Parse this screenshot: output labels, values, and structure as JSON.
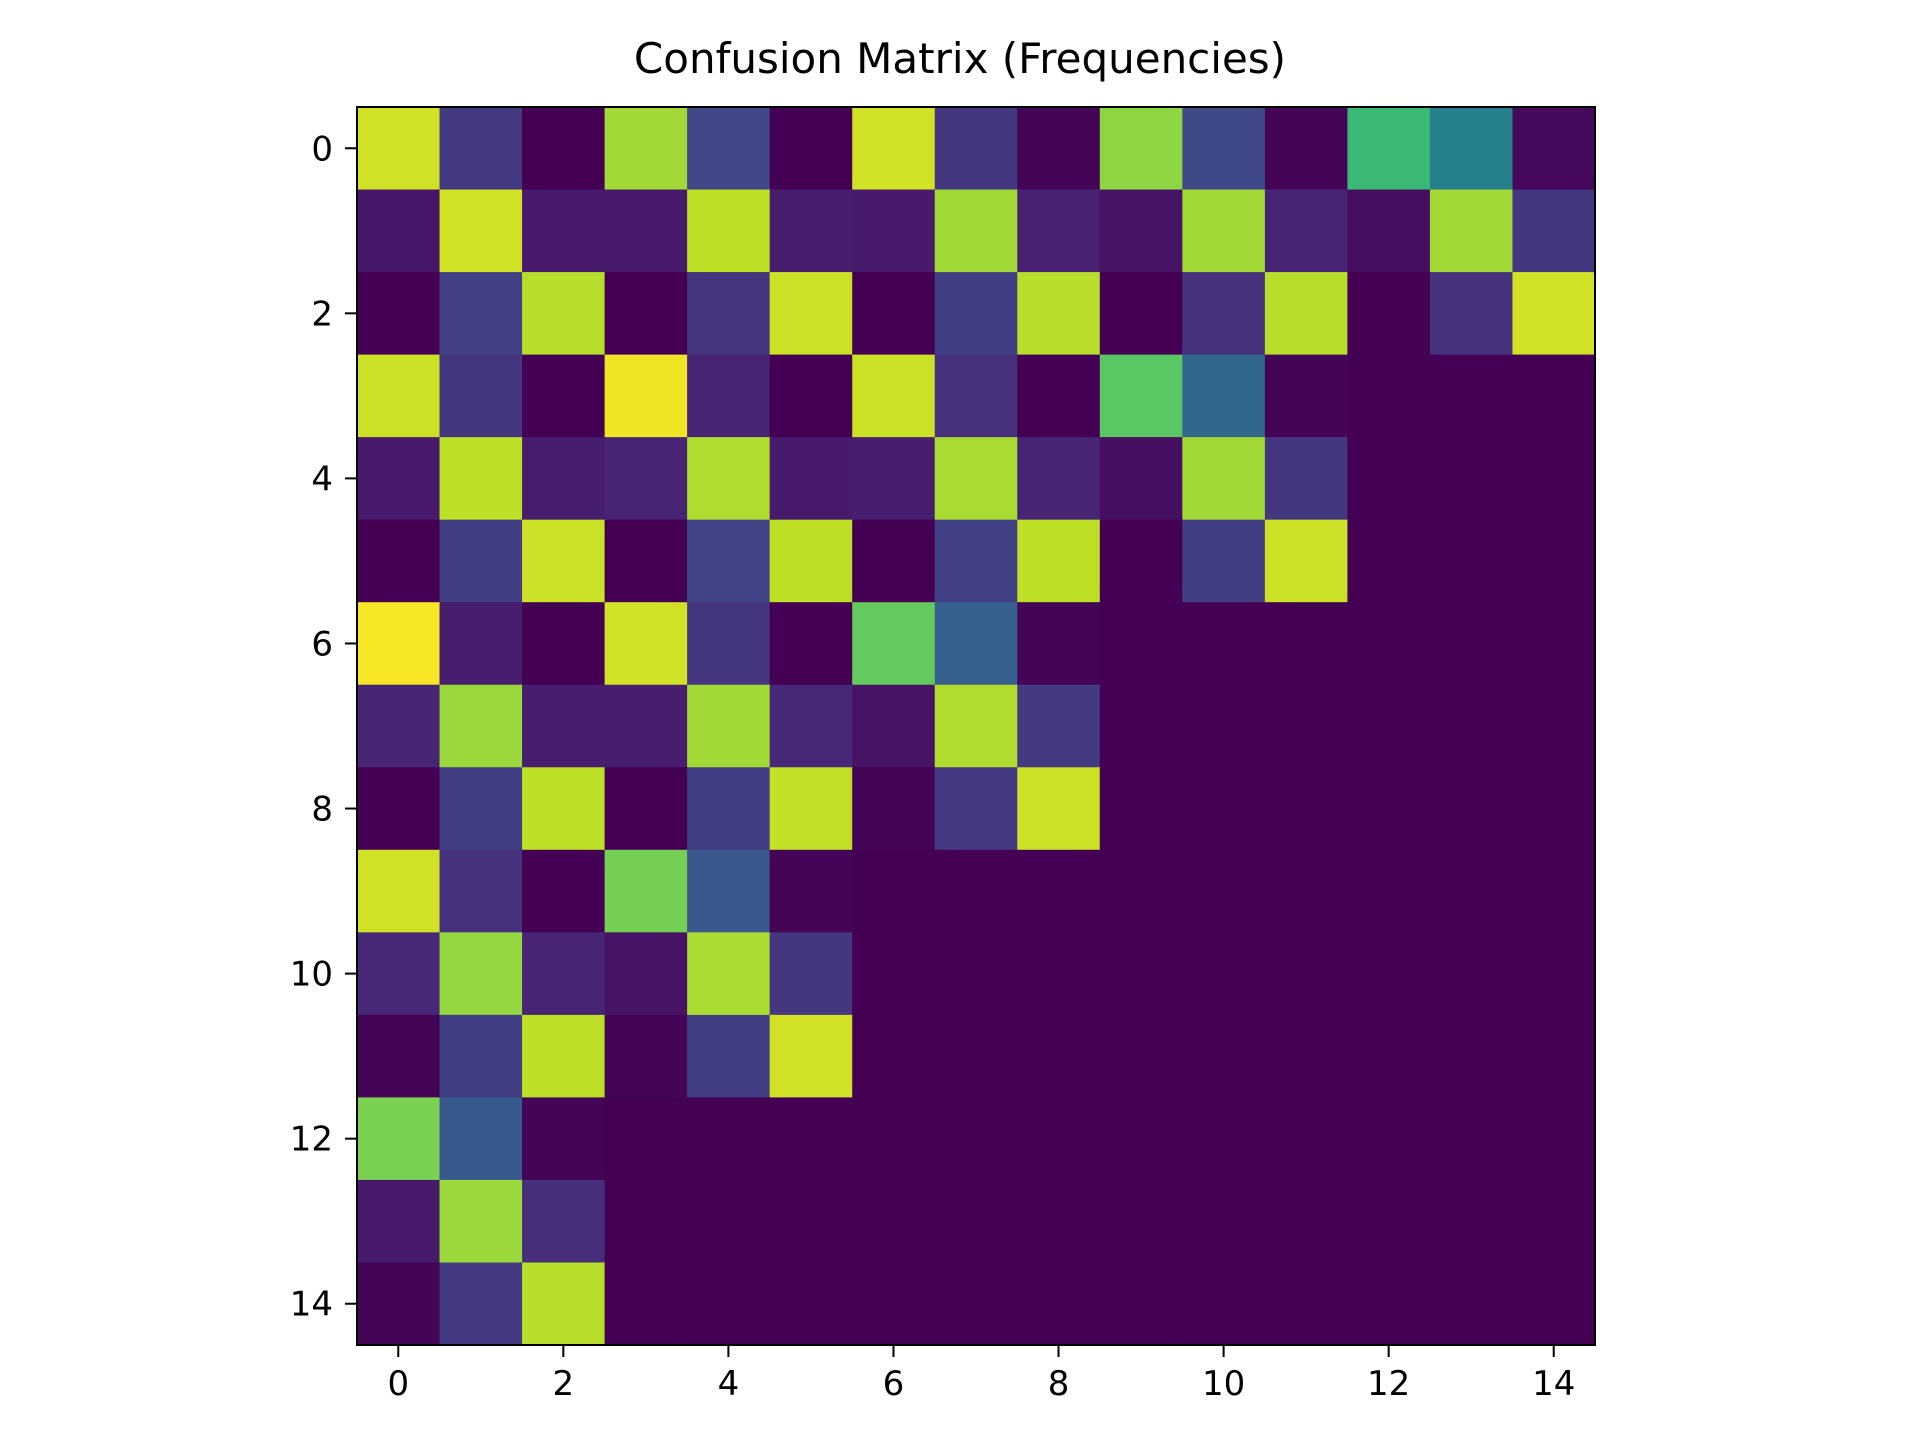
{
  "chart_data": {
    "type": "heatmap",
    "title": "Confusion Matrix (Frequencies)",
    "xlabel": "",
    "ylabel": "",
    "colormap": "viridis",
    "grid": false,
    "legend": "none",
    "xlim": [
      -0.5,
      14.5
    ],
    "ylim": [
      14.5,
      -0.5
    ],
    "x_ticks": [
      "0",
      "2",
      "4",
      "6",
      "8",
      "10",
      "12",
      "14"
    ],
    "y_ticks": [
      "0",
      "2",
      "4",
      "6",
      "8",
      "10",
      "12",
      "14"
    ],
    "x_tick_values": [
      0,
      2,
      4,
      6,
      8,
      10,
      12,
      14
    ],
    "y_tick_values": [
      0,
      2,
      4,
      6,
      8,
      10,
      12,
      14
    ],
    "value_range": [
      0,
      1
    ],
    "matrix": [
      [
        0.93,
        0.17,
        0.0,
        0.86,
        0.21,
        0.0,
        0.93,
        0.16,
        0.01,
        0.83,
        0.22,
        0.01,
        0.67,
        0.43,
        0.02
      ],
      [
        0.06,
        0.93,
        0.07,
        0.07,
        0.9,
        0.08,
        0.07,
        0.86,
        0.09,
        0.05,
        0.86,
        0.1,
        0.04,
        0.86,
        0.16
      ],
      [
        0.0,
        0.19,
        0.89,
        0.0,
        0.15,
        0.92,
        0.0,
        0.18,
        0.89,
        0.0,
        0.14,
        0.89,
        0.0,
        0.14,
        0.93
      ],
      [
        0.92,
        0.16,
        0.0,
        0.98,
        0.1,
        0.0,
        0.92,
        0.14,
        0.0,
        0.74,
        0.33,
        0.01,
        0.0,
        0.0,
        0.0
      ],
      [
        0.07,
        0.9,
        0.08,
        0.1,
        0.88,
        0.07,
        0.08,
        0.87,
        0.1,
        0.04,
        0.86,
        0.16,
        0.0,
        0.0,
        0.0
      ],
      [
        0.0,
        0.18,
        0.92,
        0.0,
        0.2,
        0.9,
        0.0,
        0.19,
        0.9,
        0.0,
        0.18,
        0.92,
        0.0,
        0.0,
        0.0
      ],
      [
        0.99,
        0.08,
        0.0,
        0.93,
        0.16,
        0.0,
        0.76,
        0.3,
        0.01,
        0.0,
        0.0,
        0.0,
        0.0,
        0.0,
        0.0
      ],
      [
        0.1,
        0.85,
        0.08,
        0.08,
        0.86,
        0.11,
        0.05,
        0.88,
        0.17,
        0.0,
        0.0,
        0.0,
        0.0,
        0.0,
        0.0
      ],
      [
        0.0,
        0.18,
        0.9,
        0.0,
        0.18,
        0.91,
        0.01,
        0.17,
        0.92,
        0.0,
        0.0,
        0.0,
        0.0,
        0.0,
        0.0
      ],
      [
        0.93,
        0.14,
        0.0,
        0.79,
        0.27,
        0.01,
        0.0,
        0.0,
        0.0,
        0.0,
        0.0,
        0.0,
        0.0,
        0.0,
        0.0
      ],
      [
        0.11,
        0.84,
        0.1,
        0.05,
        0.87,
        0.16,
        0.0,
        0.0,
        0.0,
        0.0,
        0.0,
        0.0,
        0.0,
        0.0,
        0.0
      ],
      [
        0.01,
        0.18,
        0.9,
        0.01,
        0.18,
        0.93,
        0.0,
        0.0,
        0.0,
        0.0,
        0.0,
        0.0,
        0.0,
        0.0,
        0.0
      ],
      [
        0.8,
        0.28,
        0.01,
        0.0,
        0.0,
        0.0,
        0.0,
        0.0,
        0.0,
        0.0,
        0.0,
        0.0,
        0.0,
        0.0,
        0.0
      ],
      [
        0.07,
        0.85,
        0.13,
        0.0,
        0.0,
        0.0,
        0.0,
        0.0,
        0.0,
        0.0,
        0.0,
        0.0,
        0.0,
        0.0,
        0.0
      ],
      [
        0.01,
        0.17,
        0.89,
        0.0,
        0.0,
        0.0,
        0.0,
        0.0,
        0.0,
        0.0,
        0.0,
        0.0,
        0.0,
        0.0,
        0.0
      ]
    ]
  }
}
